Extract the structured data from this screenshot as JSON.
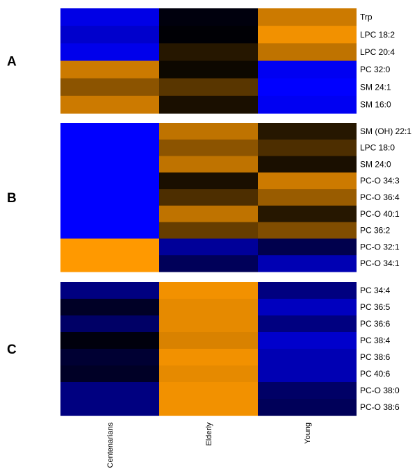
{
  "chart_data": {
    "type": "heatmap",
    "columns": [
      "Centenarians",
      "Elderly",
      "Young"
    ],
    "color_scale": {
      "low": "#0000ff",
      "mid": "#000000",
      "high": "#ff9900"
    },
    "panels": [
      {
        "label": "A",
        "rows": [
          {
            "name": "Trp",
            "values": [
              -0.9,
              -0.05,
              0.8
            ]
          },
          {
            "name": "LPC 18:2",
            "values": [
              -0.8,
              -0.02,
              0.95
            ]
          },
          {
            "name": "LPC 20:4",
            "values": [
              -0.92,
              0.15,
              0.75
            ]
          },
          {
            "name": "PC 32:0",
            "values": [
              0.8,
              0.05,
              -0.95
            ]
          },
          {
            "name": "SM 24:1",
            "values": [
              0.55,
              0.35,
              -1.0
            ]
          },
          {
            "name": "SM 16:0",
            "values": [
              0.8,
              0.1,
              -0.95
            ]
          }
        ]
      },
      {
        "label": "B",
        "rows": [
          {
            "name": "SM (OH) 22:1",
            "values": [
              -1.0,
              0.75,
              0.15
            ]
          },
          {
            "name": "LPC 18:0",
            "values": [
              -1.0,
              0.55,
              0.3
            ]
          },
          {
            "name": "SM 24:0",
            "values": [
              -1.0,
              0.75,
              0.1
            ]
          },
          {
            "name": "PC-O 34:3",
            "values": [
              -1.0,
              0.1,
              0.8
            ]
          },
          {
            "name": "PC-O 36:4",
            "values": [
              -1.0,
              0.3,
              0.6
            ]
          },
          {
            "name": "PC-O 40:1",
            "values": [
              -1.0,
              0.75,
              0.15
            ]
          },
          {
            "name": "PC 36:2",
            "values": [
              -1.0,
              0.4,
              0.5
            ]
          },
          {
            "name": "PC-O 32:1",
            "values": [
              1.0,
              -0.6,
              -0.3
            ]
          },
          {
            "name": "PC-O 34:1",
            "values": [
              1.0,
              -0.35,
              -0.7
            ]
          }
        ]
      },
      {
        "label": "C",
        "rows": [
          {
            "name": "PC 34:4",
            "values": [
              -0.5,
              0.95,
              -0.5
            ]
          },
          {
            "name": "PC 36:5",
            "values": [
              -0.15,
              0.9,
              -0.75
            ]
          },
          {
            "name": "PC 36:6",
            "values": [
              -0.4,
              0.9,
              -0.5
            ]
          },
          {
            "name": "PC 38:4",
            "values": [
              -0.05,
              0.85,
              -0.8
            ]
          },
          {
            "name": "PC 38:6",
            "values": [
              -0.2,
              0.95,
              -0.7
            ]
          },
          {
            "name": "PC 40:6",
            "values": [
              -0.15,
              0.9,
              -0.7
            ]
          },
          {
            "name": "PC-O 38:0",
            "values": [
              -0.5,
              0.95,
              -0.4
            ]
          },
          {
            "name": "PC-O 38:6",
            "values": [
              -0.5,
              0.95,
              -0.35
            ]
          }
        ]
      }
    ]
  }
}
